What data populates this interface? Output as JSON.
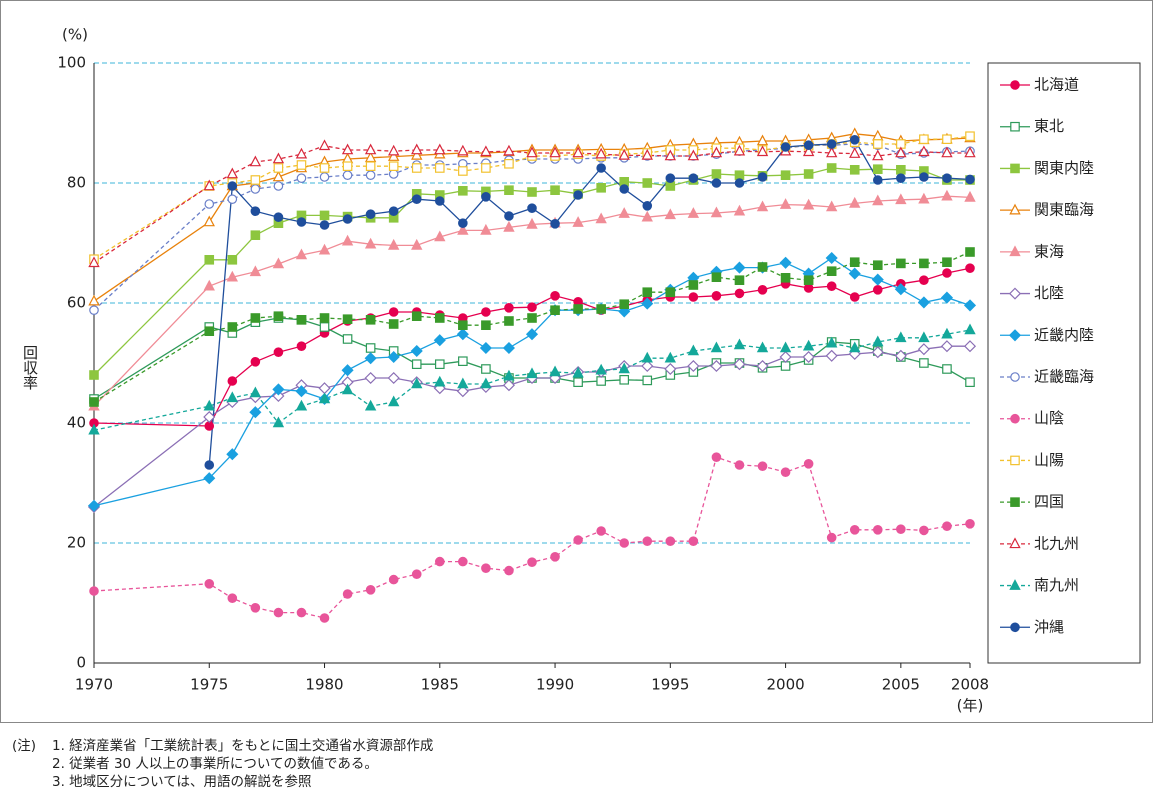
{
  "chart_data": {
    "type": "line",
    "y_label": "回収率",
    "y_unit": "(%)",
    "x_unit": "(年)",
    "ylim": [
      0,
      100
    ],
    "yticks": [
      0,
      20,
      40,
      60,
      80,
      100
    ],
    "xlim": [
      1970,
      2008
    ],
    "xticks": [
      1970,
      1975,
      1980,
      1985,
      1990,
      1995,
      2000,
      2005,
      2008
    ],
    "grid": true,
    "legend": "right",
    "x": [
      1970,
      1975,
      1976,
      1977,
      1978,
      1979,
      1980,
      1981,
      1982,
      1983,
      1984,
      1985,
      1986,
      1987,
      1988,
      1989,
      1990,
      1991,
      1992,
      1993,
      1994,
      1995,
      1996,
      1997,
      1998,
      1999,
      2000,
      2001,
      2002,
      2003,
      2004,
      2005,
      2006,
      2007,
      2008
    ],
    "series": [
      {
        "name": "北海道",
        "color": "#e5004f",
        "marker": "circle",
        "filled": true,
        "dashed": false,
        "values": [
          40,
          39.5,
          47,
          50.2,
          51.8,
          52.8,
          55,
          57,
          57.5,
          58.5,
          58.5,
          58,
          57.5,
          58.5,
          59.2,
          59.3,
          61.2,
          60.2,
          58.8,
          59.5,
          60.5,
          61,
          61,
          61.2,
          61.6,
          62.2,
          63.2,
          62.5,
          62.8,
          61,
          62.2,
          63.2,
          63.8,
          65,
          65.8
        ]
      },
      {
        "name": "東北",
        "color": "#2e9a5a",
        "marker": "square",
        "filled": false,
        "dashed": false,
        "values": [
          44,
          56,
          55,
          56.8,
          57.5,
          57.2,
          56,
          54,
          52.5,
          52,
          49.8,
          49.8,
          50.3,
          49,
          47.5,
          47.5,
          47.5,
          46.8,
          47,
          47.2,
          47.1,
          48,
          48.5,
          50,
          50,
          49.2,
          49.5,
          50.5,
          53.5,
          53.2,
          52,
          51,
          50,
          49,
          46.8
        ]
      },
      {
        "name": "関東内陸",
        "color": "#8dc63f",
        "marker": "square",
        "filled": true,
        "dashed": false,
        "values": [
          48,
          67.2,
          67.2,
          71.3,
          73.3,
          74.6,
          74.6,
          74.4,
          74.2,
          74.2,
          78.2,
          78,
          78.7,
          78.6,
          78.8,
          78.5,
          78.8,
          78.2,
          79.2,
          80.2,
          80,
          79.5,
          80.5,
          81.5,
          81.3,
          81.2,
          81.3,
          81.5,
          82.5,
          82.2,
          82.3,
          82.2,
          82,
          80.5,
          80.5
        ]
      },
      {
        "name": "関東臨海",
        "color": "#e8820c",
        "marker": "triangle",
        "filled": false,
        "dashed": false,
        "values": [
          60.3,
          73.5,
          79.5,
          80,
          81,
          82.5,
          83.5,
          84,
          84.2,
          84.4,
          84.6,
          84.8,
          85,
          85,
          85.2,
          85.5,
          85.5,
          85.5,
          85.6,
          85.6,
          85.8,
          86.3,
          86.5,
          86.7,
          86.8,
          87,
          87,
          87.2,
          87.5,
          88.2,
          87.8,
          87,
          87.2,
          87.3,
          87.5
        ]
      },
      {
        "name": "東海",
        "color": "#f08c96",
        "marker": "triangle",
        "filled": true,
        "dashed": false,
        "values": [
          42.8,
          62.8,
          64.3,
          65.2,
          66.5,
          68,
          68.8,
          70.3,
          69.8,
          69.6,
          69.6,
          71,
          72.1,
          72.1,
          72.6,
          73.1,
          73.3,
          73.4,
          74,
          74.9,
          74.3,
          74.7,
          74.9,
          75,
          75.3,
          76,
          76.4,
          76.3,
          76,
          76.6,
          77,
          77.2,
          77.3,
          77.8,
          77.6
        ]
      },
      {
        "name": "北陸",
        "color": "#8b6fb5",
        "marker": "diamond",
        "filled": false,
        "dashed": false,
        "values": [
          26,
          41,
          43.5,
          44.3,
          44.5,
          46.3,
          45.8,
          46.8,
          47.5,
          47.5,
          46.8,
          45.8,
          45.3,
          46,
          46.3,
          47.5,
          47.5,
          48.5,
          48.5,
          49.5,
          49.5,
          49,
          49.5,
          49.5,
          49.8,
          49.5,
          51,
          51,
          51.2,
          51.5,
          51.8,
          51.2,
          52.3,
          52.8,
          52.8
        ]
      },
      {
        "name": "近畿内陸",
        "color": "#1aa0e0",
        "marker": "diamond",
        "filled": true,
        "dashed": false,
        "values": [
          26.2,
          30.8,
          34.8,
          41.8,
          45.6,
          45.3,
          44,
          48.8,
          50.8,
          51,
          52,
          53.8,
          54.8,
          52.5,
          52.5,
          54.8,
          58.8,
          58.8,
          59,
          58.6,
          59.9,
          62.2,
          64.2,
          65.2,
          65.9,
          65.9,
          66.7,
          64.9,
          67.5,
          64.9,
          63.9,
          62.3,
          60.1,
          60.9,
          59.6
        ]
      },
      {
        "name": "近畿臨海",
        "color": "#6a7fc8",
        "marker": "circle",
        "filled": false,
        "dashed": true,
        "values": [
          58.8,
          76.5,
          77.3,
          79,
          79.5,
          80.8,
          81,
          81.3,
          81.3,
          81.5,
          83,
          83,
          83.2,
          83.3,
          83.8,
          84,
          84,
          84,
          84.2,
          84.2,
          84.5,
          84.5,
          84.5,
          84.8,
          85.3,
          85.5,
          85.8,
          86.3,
          86.3,
          86.5,
          86.3,
          84.8,
          85,
          85.2,
          85.3
        ]
      },
      {
        "name": "山陰",
        "color": "#e8559a",
        "marker": "circle",
        "filled": true,
        "dashed": true,
        "values": [
          12,
          13.2,
          10.8,
          9.2,
          8.4,
          8.4,
          7.5,
          11.5,
          12.2,
          13.9,
          14.8,
          16.9,
          16.9,
          15.8,
          15.4,
          16.8,
          17.7,
          20.5,
          22,
          20,
          20.3,
          20.3,
          20.3,
          34.3,
          33,
          32.8,
          31.8,
          33.2,
          20.9,
          22.2,
          22.2,
          22.3,
          22.1,
          22.8,
          23.2
        ]
      },
      {
        "name": "山陽",
        "color": "#f2c12e",
        "marker": "square",
        "filled": false,
        "dashed": true,
        "values": [
          67.3,
          79.5,
          80,
          80.5,
          82.5,
          83,
          82.5,
          82.8,
          82.8,
          82.8,
          82.5,
          82.5,
          82,
          82.5,
          83.2,
          84.5,
          84.5,
          84.8,
          84.5,
          84.8,
          85,
          85.5,
          85.5,
          85.8,
          85.8,
          85.5,
          86,
          86.2,
          86.5,
          86.8,
          86.5,
          86.5,
          87.3,
          87.3,
          87.8
        ]
      },
      {
        "name": "四国",
        "color": "#3a9a2a",
        "marker": "square",
        "filled": true,
        "dashed": true,
        "values": [
          43.5,
          55.3,
          56,
          57.5,
          57.8,
          57.2,
          57.5,
          57.3,
          57.2,
          56.5,
          57.8,
          57.5,
          56.3,
          56.3,
          57,
          57.5,
          58.8,
          59,
          59,
          59.8,
          61.8,
          61.8,
          63,
          64.3,
          63.8,
          66,
          64.2,
          63.8,
          65.3,
          66.8,
          66.3,
          66.6,
          66.6,
          66.8,
          68.5
        ]
      },
      {
        "name": "北九州",
        "color": "#d8283c",
        "marker": "triangle",
        "filled": false,
        "dashed": true,
        "values": [
          66.7,
          79.5,
          81.5,
          83.5,
          84,
          84.8,
          86.2,
          85.5,
          85.5,
          85.3,
          85.5,
          85.5,
          85.3,
          85.2,
          85.3,
          85,
          85,
          85,
          84.8,
          84.6,
          84.6,
          84.5,
          84.5,
          85,
          85.3,
          85.2,
          85.3,
          85.2,
          85,
          84.9,
          84.5,
          85,
          85.2,
          85,
          85
        ]
      },
      {
        "name": "南九州",
        "color": "#14a89a",
        "marker": "triangle",
        "filled": true,
        "dashed": true,
        "values": [
          38.8,
          42.8,
          44.2,
          45,
          40,
          42.8,
          44,
          45.5,
          42.8,
          43.5,
          46.5,
          46.8,
          46.5,
          46.5,
          47.8,
          48.2,
          48.5,
          48.3,
          48.8,
          49,
          50.8,
          50.8,
          52,
          52.5,
          53,
          52.5,
          52.5,
          52.8,
          53.3,
          52.5,
          53.5,
          54.2,
          54.2,
          54.8,
          55.5
        ]
      },
      {
        "name": "沖縄",
        "color": "#1f4e9c",
        "marker": "circle",
        "filled": true,
        "dashed": false,
        "values": [
          null,
          33,
          79.5,
          75.3,
          74.3,
          73.5,
          73,
          74,
          74.8,
          75.3,
          77.3,
          77,
          73.3,
          77.7,
          74.5,
          75.8,
          73.2,
          78,
          82.5,
          79,
          76.2,
          80.8,
          80.8,
          80,
          80,
          81,
          86,
          86.3,
          86.5,
          87.2,
          80.5,
          80.8,
          81,
          80.8,
          80.6
        ]
      }
    ],
    "note_label": "(注)",
    "notes": [
      "1. 経済産業省「工業統計表」をもとに国土交通省水資源部作成",
      "2. 従業者 30 人以上の事業所についての数値である。",
      "3. 地域区分については、用語の解説を参照"
    ]
  }
}
